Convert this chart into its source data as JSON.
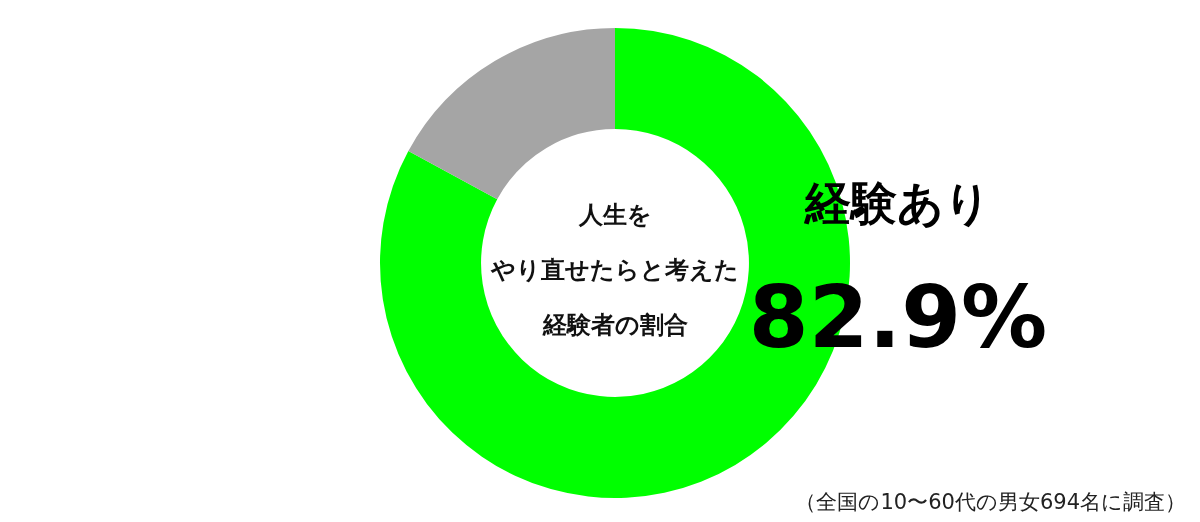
{
  "chart_data": {
    "type": "donut",
    "title": "人生をやり直せたらと考えた経験者の割合",
    "categories": [
      "経験あり",
      null
    ],
    "values": [
      82.9,
      17.1
    ],
    "colors": [
      "#00ff00",
      "#a5a5a5"
    ],
    "value_labels": [
      "82.9%",
      null
    ],
    "annotations": [
      "（全国の10〜60代の男女694名に調査）"
    ]
  }
}
